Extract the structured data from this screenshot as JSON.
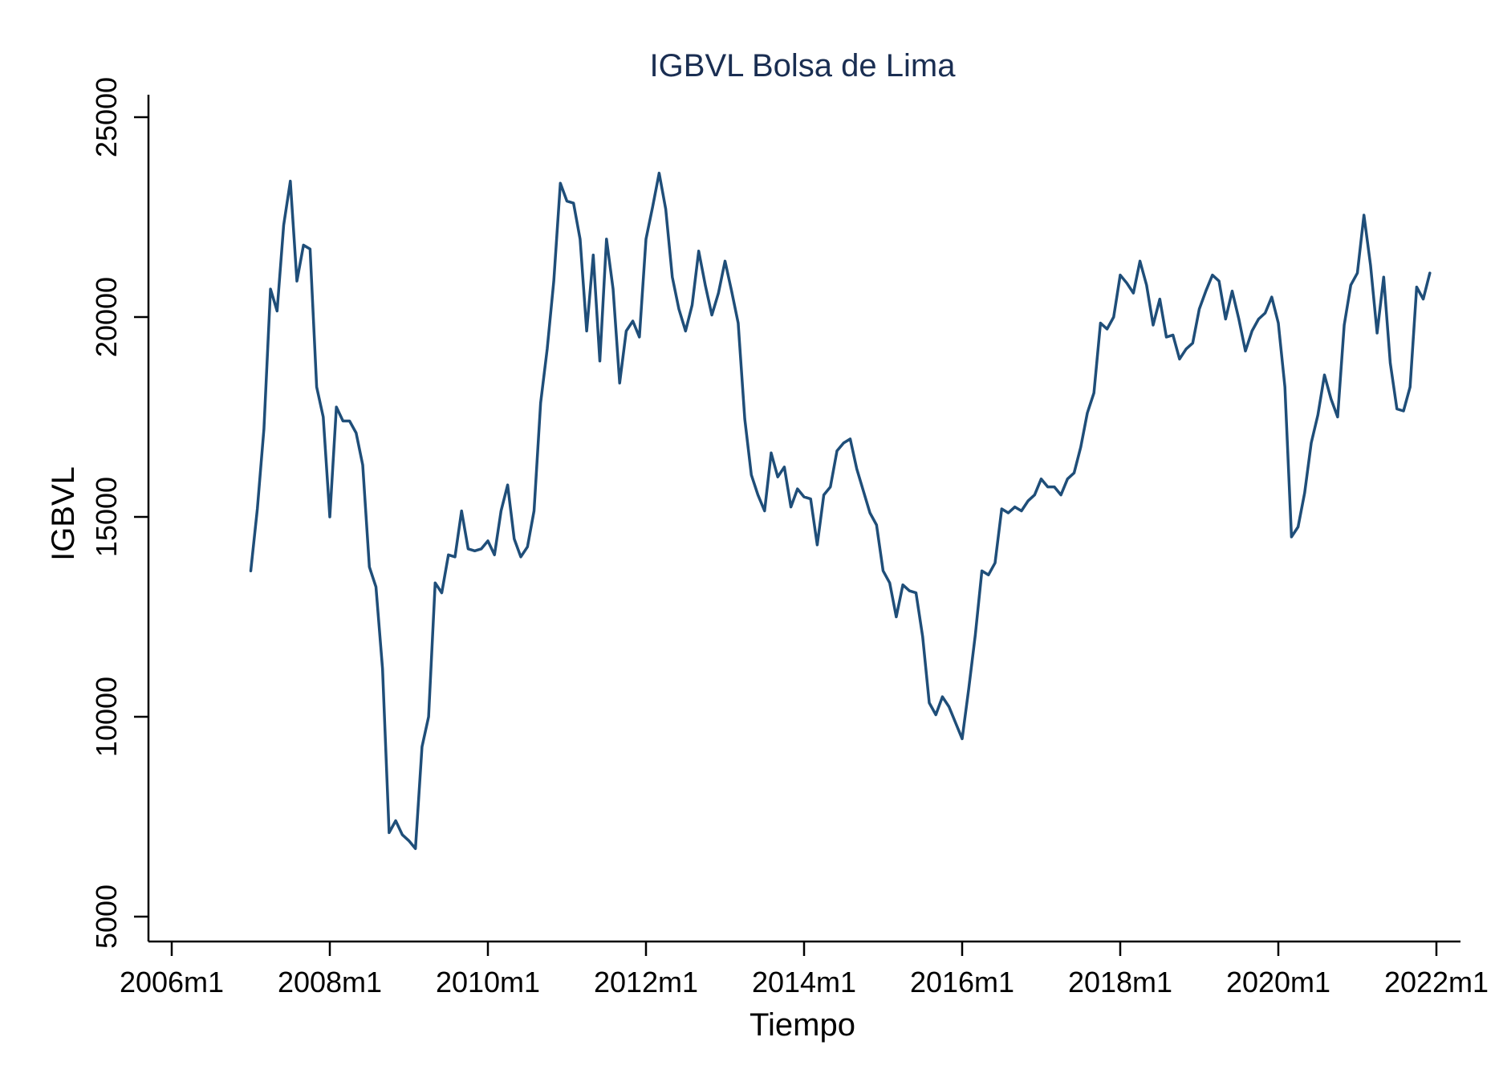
{
  "chart_data": {
    "type": "line",
    "title": "IGBVL Bolsa de Lima",
    "xlabel": "Tiempo",
    "ylabel": "IGBVL",
    "xlim": [
      2006.0,
      2022.0
    ],
    "ylim": [
      5000,
      25000
    ],
    "x_ticks": [
      {
        "value": 2006,
        "label": "2006m1"
      },
      {
        "value": 2008,
        "label": "2008m1"
      },
      {
        "value": 2010,
        "label": "2010m1"
      },
      {
        "value": 2012,
        "label": "2012m1"
      },
      {
        "value": 2014,
        "label": "2014m1"
      },
      {
        "value": 2016,
        "label": "2016m1"
      },
      {
        "value": 2018,
        "label": "2018m1"
      },
      {
        "value": 2020,
        "label": "2020m1"
      },
      {
        "value": 2022,
        "label": "2022m1"
      }
    ],
    "y_ticks": [
      {
        "value": 5000,
        "label": "5000"
      },
      {
        "value": 10000,
        "label": "10000"
      },
      {
        "value": 15000,
        "label": "15000"
      },
      {
        "value": 20000,
        "label": "20000"
      },
      {
        "value": 25000,
        "label": "25000"
      }
    ],
    "grid": false,
    "legend": "none",
    "series": [
      {
        "color": "#1f4e79",
        "start": "2007m1",
        "frequency": "monthly",
        "values": [
          13650,
          15200,
          17200,
          20700,
          20150,
          22300,
          23400,
          20900,
          21800,
          21700,
          18250,
          17500,
          15000,
          17750,
          17400,
          17400,
          17100,
          16300,
          13750,
          13250,
          11200,
          7100,
          7400,
          7050,
          6900,
          6700,
          9250,
          10000,
          13350,
          13100,
          14050,
          14000,
          15150,
          14200,
          14150,
          14200,
          14400,
          14050,
          15150,
          15800,
          14450,
          14000,
          14250,
          15150,
          17850,
          19200,
          20900,
          23350,
          22900,
          22850,
          21950,
          19650,
          21550,
          18900,
          21950,
          20700,
          18350,
          19650,
          19900,
          19500,
          21950,
          22750,
          23600,
          22700,
          21000,
          20200,
          19650,
          20300,
          21650,
          20800,
          20050,
          20600,
          21400,
          20650,
          19850,
          17450,
          16050,
          15550,
          15150,
          16600,
          16000,
          16250,
          15250,
          15700,
          15500,
          15450,
          14300,
          15550,
          15750,
          16650,
          16850,
          16950,
          16200,
          15650,
          15100,
          14800,
          13650,
          13350,
          12500,
          13300,
          13150,
          13100,
          12000,
          10350,
          10050,
          10500,
          10250,
          9850,
          9450,
          10700,
          12050,
          13650,
          13550,
          13850,
          15200,
          15100,
          15250,
          15150,
          15400,
          15550,
          15950,
          15750,
          15750,
          15550,
          15950,
          16100,
          16750,
          17600,
          18100,
          19850,
          19700,
          20000,
          21050,
          20850,
          20600,
          21400,
          20800,
          19800,
          20450,
          19500,
          19550,
          18950,
          19200,
          19350,
          20200,
          20650,
          21050,
          20900,
          19950,
          20650,
          19950,
          19150,
          19650,
          19950,
          20100,
          20500,
          19850,
          18250,
          14500,
          14750,
          15600,
          16850,
          17550,
          18550,
          17950,
          17500,
          19800,
          20800,
          21100,
          22550,
          21300,
          19600,
          21000,
          18850,
          17700,
          17650,
          18250,
          20750,
          20450,
          21100
        ]
      }
    ]
  }
}
